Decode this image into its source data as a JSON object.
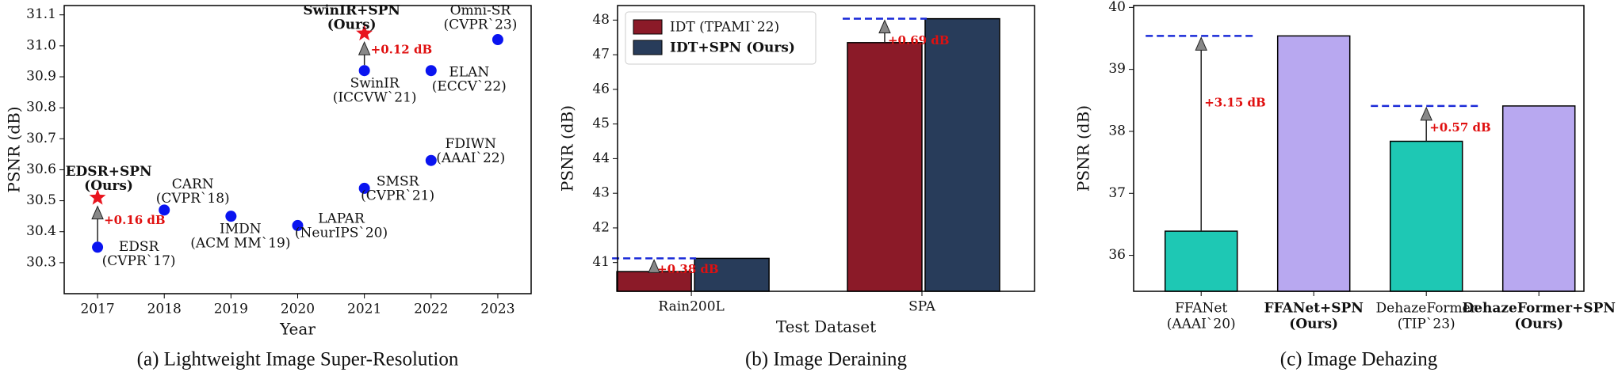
{
  "chart_data": [
    {
      "type": "scatter",
      "caption": "(a) Lightweight Image Super-Resolution",
      "xlabel": "Year",
      "ylabel": "PSNR (dB)",
      "xlim": [
        2016.5,
        2023.5
      ],
      "ylim": [
        30.2,
        31.13
      ],
      "xticks": [
        2017,
        2018,
        2019,
        2020,
        2021,
        2022,
        2023
      ],
      "yticks": [
        30.3,
        30.4,
        30.5,
        30.6,
        30.7,
        30.8,
        30.9,
        {
          "value": 31,
          "label": "31.0"
        },
        31.1
      ],
      "series": [
        {
          "color": "#0a14f0",
          "marker": "circle",
          "x": [
            2017,
            2018,
            2019,
            2020,
            2021,
            2021,
            2022,
            2022,
            2023
          ],
          "values": [
            30.35,
            30.47,
            30.45,
            30.42,
            30.54,
            30.92,
            30.92,
            30.63,
            31.02
          ],
          "labels": [
            [
              "EDSR",
              "(CVPR`17)"
            ],
            [
              "CARN",
              "(CVPR`18)"
            ],
            [
              "IMDN",
              "(ACM MM`19)"
            ],
            [
              "LAPAR",
              "(NeurIPS`20)"
            ],
            [
              "SMSR",
              "(CVPR`21)"
            ],
            [
              "SwinIR",
              "(ICCVW`21)"
            ],
            [
              "ELAN",
              "(ECCV`22)"
            ],
            [
              "FDIWN",
              "(AAAI`22)"
            ],
            [
              "Omni-SR",
              "(CVPR`23)"
            ]
          ]
        },
        {
          "color": "#e8141e",
          "marker": "star",
          "bold": true,
          "x": [
            2017,
            2021
          ],
          "values": [
            30.51,
            31.04
          ],
          "labels": [
            [
              "EDSR+SPN",
              "(Ours)"
            ],
            [
              "SwinIR+SPN",
              "(Ours)"
            ]
          ]
        }
      ],
      "annotations": [
        "+0.16 dB",
        "+0.12 dB"
      ]
    },
    {
      "type": "bar",
      "caption": "(b) Image Deraining",
      "xlabel": "Test Dataset",
      "ylabel": "PSNR (dB)",
      "ylim": [
        40.17,
        48.42
      ],
      "yticks": [
        41,
        42,
        43,
        44,
        45,
        46,
        47,
        48
      ],
      "categories": [
        "Rain200L",
        "SPA"
      ],
      "series": [
        {
          "name": "IDT (TPAMI`22)",
          "color": "#8b1a28",
          "values": [
            40.74,
            47.35
          ]
        },
        {
          "name": "IDT+SPN (Ours)",
          "color": "#283c5a",
          "bold": true,
          "values": [
            41.12,
            48.04
          ]
        }
      ],
      "legend": "upper left",
      "annotations": [
        "+0.38 dB",
        "+0.69 dB"
      ]
    },
    {
      "type": "bar",
      "caption": "(c) Image Dehazing",
      "ylabel": "PSNR (dB)",
      "ylim": [
        35.42,
        40.03
      ],
      "yticks": [
        36,
        37,
        38,
        39,
        40
      ],
      "categories": [
        [
          "FFANet",
          "(AAAI`20)"
        ],
        [
          "FFANet+SPN",
          "(Ours)"
        ],
        [
          "DehazeFormer",
          "(TIP`23)"
        ],
        [
          "DehazeFormer+SPN",
          "(Ours)"
        ]
      ],
      "values": [
        36.39,
        39.54,
        37.84,
        38.41
      ],
      "colors": [
        "#1ec8b4",
        "#b8a8f0",
        "#1ec8b4",
        "#b8a8f0"
      ],
      "bold": [
        false,
        true,
        false,
        true
      ],
      "annotations": [
        "+3.15 dB",
        "+0.57 dB"
      ]
    }
  ]
}
